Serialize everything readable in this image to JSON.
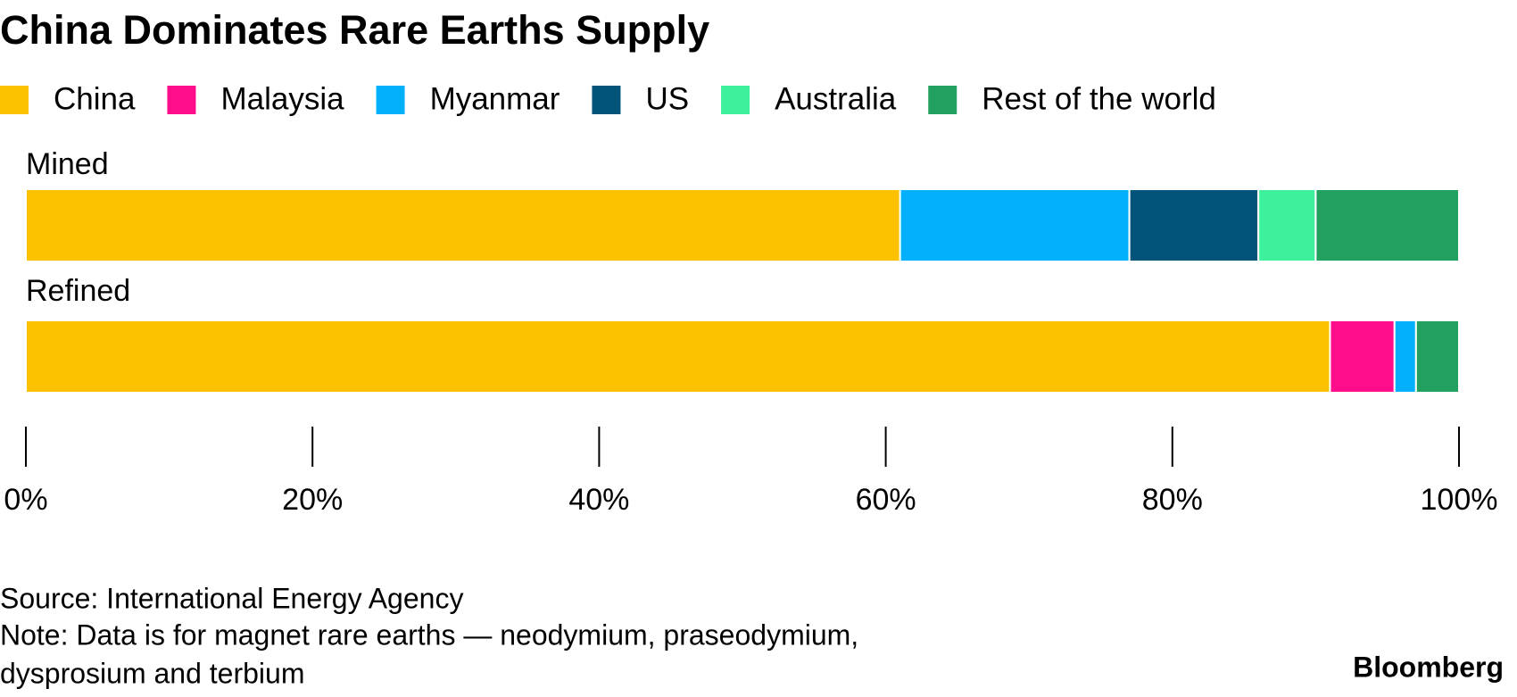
{
  "chart_data": {
    "type": "bar",
    "orientation": "horizontal",
    "stacked": true,
    "title": "China Dominates Rare Earths Supply",
    "categories": [
      "Mined",
      "Refined"
    ],
    "series": [
      {
        "name": "China",
        "color": "#fcc200",
        "values": [
          61,
          91
        ]
      },
      {
        "name": "Malaysia",
        "color": "#ff0d8b",
        "values": [
          0,
          4.5
        ]
      },
      {
        "name": "Myanmar",
        "color": "#03b0fb",
        "values": [
          16,
          1.5
        ]
      },
      {
        "name": "US",
        "color": "#02547a",
        "values": [
          9,
          0
        ]
      },
      {
        "name": "Australia",
        "color": "#3df09b",
        "values": [
          4,
          0
        ]
      },
      {
        "name": "Rest of the world",
        "color": "#22a060",
        "values": [
          10,
          3
        ]
      }
    ],
    "xlim": [
      0,
      100
    ],
    "xticks": [
      {
        "value": 0,
        "label": "0%"
      },
      {
        "value": 20,
        "label": "20%"
      },
      {
        "value": 40,
        "label": "40%"
      },
      {
        "value": 60,
        "label": "60%"
      },
      {
        "value": 80,
        "label": "80%"
      },
      {
        "value": 100,
        "label": "100%"
      }
    ],
    "source": "Source: International Energy Agency",
    "note": [
      "Note: Data is for magnet rare earths — neodymium, praseodymium,",
      "dysprosium and terbium"
    ],
    "brand": "Bloomberg"
  }
}
